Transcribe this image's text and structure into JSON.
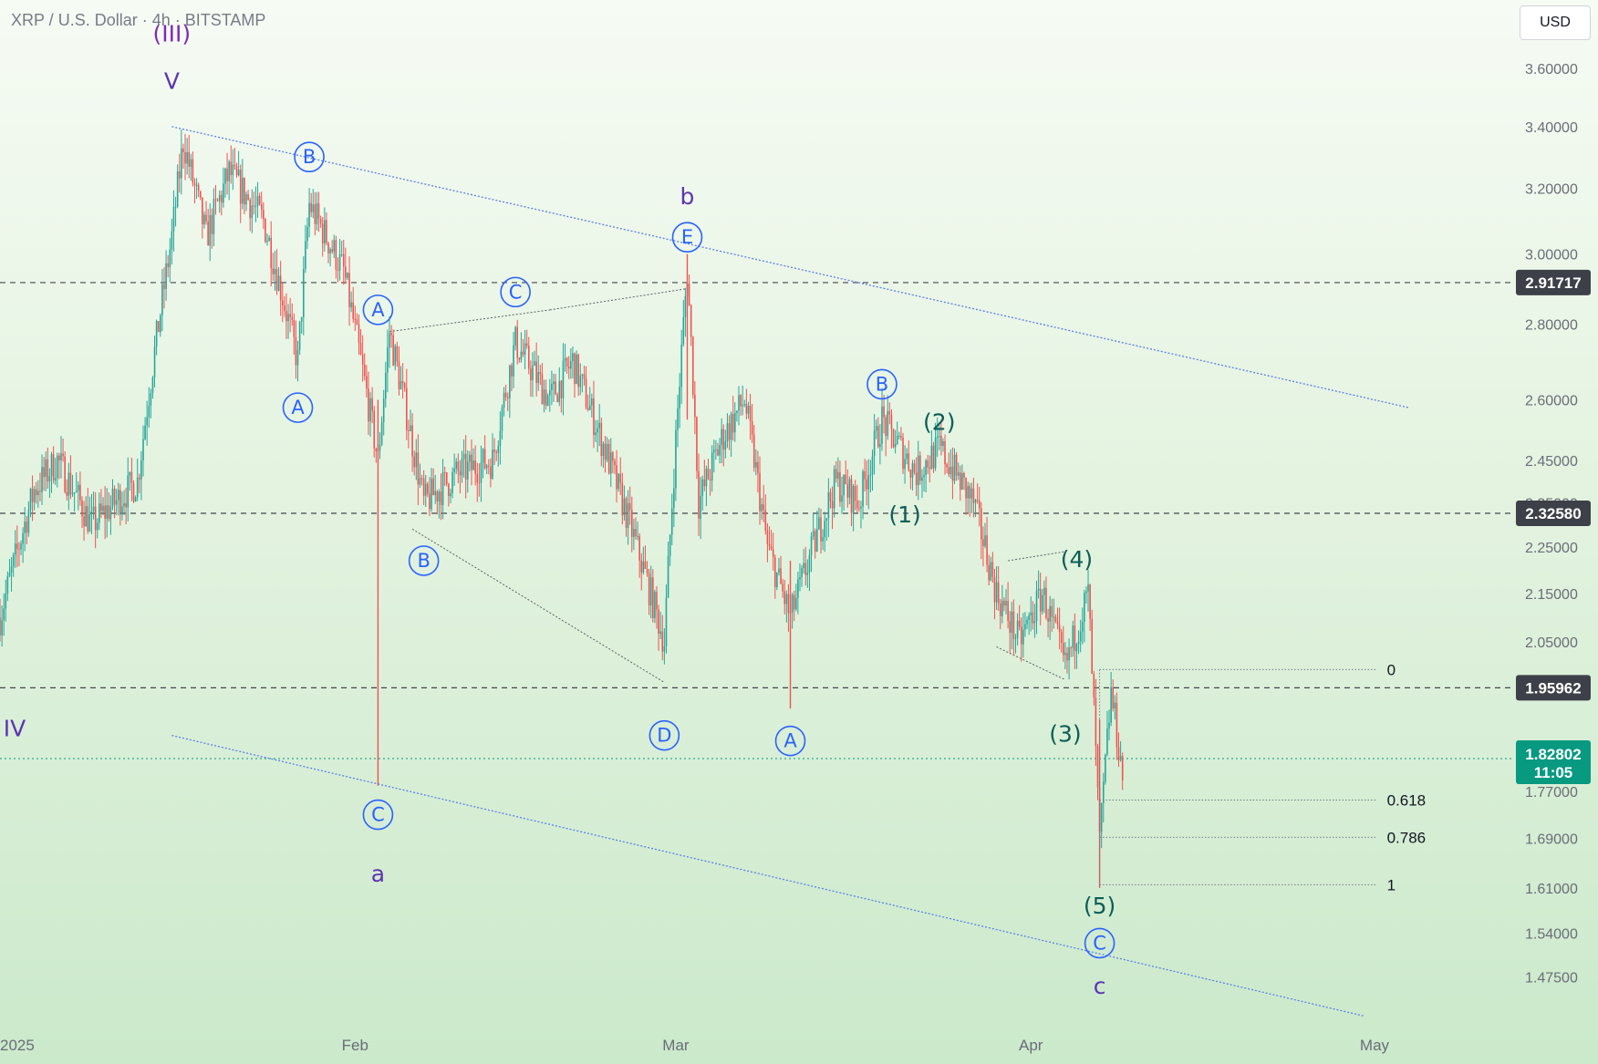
{
  "header": {
    "symbol_title": "XRP / U.S. Dollar · 4h · BITSTAMP"
  },
  "currency_button": {
    "label": "USD"
  },
  "colors": {
    "up": "#26a69a",
    "down": "#ef5350",
    "wave_purple": "#7e2bb5",
    "wave_indigo": "#5e35b1",
    "wave_teal": "#0b5e57",
    "circle_blue": "#2962ff",
    "channel": "#5a7fe6",
    "tag_dark": "#3d4048",
    "tag_current": "#089981"
  },
  "chart_data": {
    "type": "candlestick",
    "title": "XRP / U.S. Dollar · 4h · BITSTAMP",
    "y_scale": "log",
    "ylim": [
      1.4,
      3.85
    ],
    "y_ticks": [
      "3.60000",
      "3.40000",
      "3.20000",
      "3.00000",
      "2.80000",
      "2.60000",
      "2.45000",
      "2.35000",
      "2.25000",
      "2.15000",
      "2.05000",
      "1.85000",
      "1.77000",
      "1.69000",
      "1.61000",
      "1.54000",
      "1.47500"
    ],
    "x_ticks": [
      {
        "label": "2025",
        "date": "2025-01-01"
      },
      {
        "label": "Feb",
        "date": "2025-02-01"
      },
      {
        "label": "Mar",
        "date": "2025-03-01"
      },
      {
        "label": "Apr",
        "date": "2025-04-01"
      },
      {
        "label": "May",
        "date": "2025-05-01"
      }
    ],
    "xlim": [
      "2025-01-01",
      "2025-05-10"
    ],
    "price_path": [
      [
        "2025-01-01",
        2.1
      ],
      [
        "2025-01-04",
        2.38
      ],
      [
        "2025-01-06",
        2.45
      ],
      [
        "2025-01-09",
        2.3
      ],
      [
        "2025-01-13",
        2.4
      ],
      [
        "2025-01-16",
        3.05
      ],
      [
        "2025-01-17",
        3.35
      ],
      [
        "2025-01-19",
        3.05
      ],
      [
        "2025-01-21",
        3.25
      ],
      [
        "2025-01-24",
        3.1
      ],
      [
        "2025-01-27",
        2.7
      ],
      [
        "2025-01-28",
        3.15
      ],
      [
        "2025-01-31",
        2.95
      ],
      [
        "2025-02-03",
        2.45
      ],
      [
        "2025-02-04",
        2.78
      ],
      [
        "2025-02-07",
        2.35
      ],
      [
        "2025-02-10",
        2.42
      ],
      [
        "2025-02-13",
        2.45
      ],
      [
        "2025-02-15",
        2.75
      ],
      [
        "2025-02-18",
        2.6
      ],
      [
        "2025-02-20",
        2.7
      ],
      [
        "2025-02-25",
        2.3
      ],
      [
        "2025-02-28",
        2.05
      ],
      [
        "2025-03-02",
        2.95
      ],
      [
        "2025-03-03",
        2.35
      ],
      [
        "2025-03-05",
        2.5
      ],
      [
        "2025-03-07",
        2.6
      ],
      [
        "2025-03-09",
        2.25
      ],
      [
        "2025-03-11",
        2.1
      ],
      [
        "2025-03-15",
        2.4
      ],
      [
        "2025-03-17",
        2.35
      ],
      [
        "2025-03-19",
        2.55
      ],
      [
        "2025-03-22",
        2.42
      ],
      [
        "2025-03-24",
        2.48
      ],
      [
        "2025-03-27",
        2.35
      ],
      [
        "2025-03-29",
        2.15
      ],
      [
        "2025-03-31",
        2.05
      ],
      [
        "2025-04-02",
        2.15
      ],
      [
        "2025-04-04",
        2.0
      ],
      [
        "2025-04-06",
        2.15
      ],
      [
        "2025-04-07",
        1.68
      ],
      [
        "2025-04-08",
        1.95
      ],
      [
        "2025-04-09",
        1.8
      ]
    ],
    "long_wicks": [
      {
        "date": "2025-02-03",
        "high": 2.6,
        "low": 1.78
      },
      {
        "date": "2025-03-02",
        "high": 3.0,
        "low": 2.55
      },
      {
        "date": "2025-03-11",
        "high": 2.22,
        "low": 1.92
      },
      {
        "date": "2025-04-07",
        "high": 1.9,
        "low": 1.61
      }
    ],
    "last_price": 1.82802,
    "countdown": "11:05",
    "horizontal_levels": [
      {
        "price": 2.91717,
        "label": "2.91717"
      },
      {
        "price": 2.3258,
        "label": "2.32580"
      },
      {
        "price": 1.95962,
        "label": "1.95962"
      }
    ],
    "current_price_label": "1.82802",
    "fibonacci": {
      "from_date": "2025-04-07",
      "to_date": "2025-04-16",
      "levels": [
        {
          "ratio": "0",
          "price": 1.995
        },
        {
          "ratio": "0.618",
          "price": 1.755
        },
        {
          "ratio": "0.786",
          "price": 1.692
        },
        {
          "ratio": "1",
          "price": 1.615
        }
      ]
    },
    "channel": {
      "upper": [
        [
          "2025-01-16",
          3.4
        ],
        [
          "2025-05-04",
          2.58
        ]
      ],
      "lower": [
        [
          "2025-01-16",
          1.87
        ],
        [
          "2025-04-30",
          1.42
        ]
      ]
    },
    "triangle_lines": [
      [
        [
          "2025-02-04",
          2.78
        ],
        [
          "2025-02-18",
          2.84
        ]
      ],
      [
        [
          "2025-02-18",
          2.84
        ],
        [
          "2025-03-02",
          2.9
        ]
      ],
      [
        [
          "2025-02-06",
          2.29
        ],
        [
          "2025-02-28",
          1.97
        ]
      ],
      [
        [
          "2025-03-30",
          2.22
        ],
        [
          "2025-04-04",
          2.24
        ]
      ],
      [
        [
          "2025-03-29",
          2.04
        ],
        [
          "2025-04-04",
          1.975
        ]
      ]
    ],
    "wave_labels": [
      {
        "text": "(III)",
        "date": "2025-01-16",
        "price": 3.72,
        "color": "wave_purple"
      },
      {
        "text": "V",
        "date": "2025-01-16",
        "price": 3.55,
        "color": "wave_indigo"
      },
      {
        "text": "IV",
        "date": "2025-01-01",
        "price": 1.88,
        "color": "wave_indigo"
      },
      {
        "text": "a",
        "date": "2025-02-03",
        "price": 1.63,
        "color": "wave_indigo"
      },
      {
        "text": "b",
        "date": "2025-03-02",
        "price": 3.17,
        "color": "wave_indigo"
      },
      {
        "text": "c",
        "date": "2025-04-07",
        "price": 1.46,
        "color": "wave_indigo"
      },
      {
        "text": "(1)",
        "date": "2025-03-21",
        "price": 2.32,
        "color": "wave_teal"
      },
      {
        "text": "(2)",
        "date": "2025-03-24",
        "price": 2.54,
        "color": "wave_teal"
      },
      {
        "text": "(3)",
        "date": "2025-04-04",
        "price": 1.87,
        "color": "wave_teal"
      },
      {
        "text": "(4)",
        "date": "2025-04-05",
        "price": 2.22,
        "color": "wave_teal"
      },
      {
        "text": "(5)",
        "date": "2025-04-07",
        "price": 1.58,
        "color": "wave_teal"
      }
    ],
    "circled_labels": [
      {
        "text": "B",
        "date": "2025-01-28",
        "price": 3.3
      },
      {
        "text": "A",
        "date": "2025-01-27",
        "price": 2.58
      },
      {
        "text": "A",
        "date": "2025-02-03",
        "price": 2.84
      },
      {
        "text": "C",
        "date": "2025-02-15",
        "price": 2.89
      },
      {
        "text": "C",
        "date": "2025-02-03",
        "price": 1.73
      },
      {
        "text": "B",
        "date": "2025-02-07",
        "price": 2.22
      },
      {
        "text": "E",
        "date": "2025-03-02",
        "price": 3.05
      },
      {
        "text": "D",
        "date": "2025-02-28",
        "price": 1.87
      },
      {
        "text": "A",
        "date": "2025-03-11",
        "price": 1.86
      },
      {
        "text": "B",
        "date": "2025-03-19",
        "price": 2.64
      },
      {
        "text": "C",
        "date": "2025-04-07",
        "price": 1.525
      }
    ]
  }
}
